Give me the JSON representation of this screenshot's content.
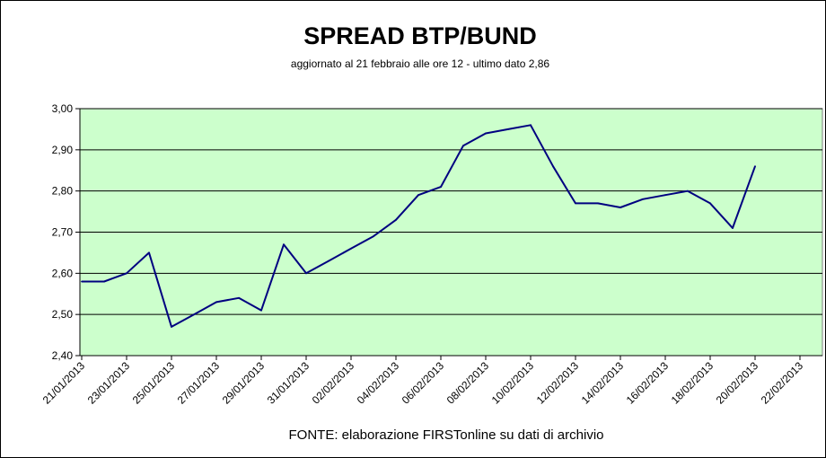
{
  "chart_data": {
    "type": "line",
    "title": "SPREAD  BTP/BUND",
    "subtitle": "aggiornato al 21 febbraio alle ore 12 - ultimo dato 2,86",
    "xlabel": "FONTE: elaborazione FIRSTonline su dati di archivio",
    "ylabel": "",
    "ylim": [
      2.4,
      3.0
    ],
    "y_ticks": [
      "2,40",
      "2,50",
      "2,60",
      "2,70",
      "2,80",
      "2,90",
      "3,00"
    ],
    "x_ticks": [
      "21/01/2013",
      "23/01/2013",
      "25/01/2013",
      "27/01/2013",
      "29/01/2013",
      "31/01/2013",
      "02/02/2013",
      "04/02/2013",
      "06/02/2013",
      "08/02/2013",
      "10/02/2013",
      "12/02/2013",
      "14/02/2013",
      "16/02/2013",
      "18/02/2013",
      "20/02/2013",
      "22/02/2013"
    ],
    "grid": true,
    "colors": {
      "plot_area": "#ccffcc",
      "line": "#000080",
      "grid": "#000000"
    },
    "series": [
      {
        "points": [
          [
            "21/01/2013",
            2.58
          ],
          [
            "22/01/2013",
            2.58
          ],
          [
            "23/01/2013",
            2.6
          ],
          [
            "24/01/2013",
            2.65
          ],
          [
            "25/01/2013",
            2.47
          ],
          [
            "26/01/2013",
            2.5
          ],
          [
            "27/01/2013",
            2.53
          ],
          [
            "28/01/2013",
            2.54
          ],
          [
            "29/01/2013",
            2.51
          ],
          [
            "30/01/2013",
            2.67
          ],
          [
            "31/01/2013",
            2.6
          ],
          [
            "01/02/2013",
            2.63
          ],
          [
            "02/02/2013",
            2.66
          ],
          [
            "03/02/2013",
            2.69
          ],
          [
            "04/02/2013",
            2.73
          ],
          [
            "05/02/2013",
            2.79
          ],
          [
            "06/02/2013",
            2.81
          ],
          [
            "07/02/2013",
            2.91
          ],
          [
            "08/02/2013",
            2.94
          ],
          [
            "09/02/2013",
            2.95
          ],
          [
            "10/02/2013",
            2.96
          ],
          [
            "11/02/2013",
            2.86
          ],
          [
            "12/02/2013",
            2.77
          ],
          [
            "13/02/2013",
            2.77
          ],
          [
            "14/02/2013",
            2.76
          ],
          [
            "15/02/2013",
            2.78
          ],
          [
            "16/02/2013",
            2.79
          ],
          [
            "17/02/2013",
            2.8
          ],
          [
            "18/02/2013",
            2.77
          ],
          [
            "19/02/2013",
            2.71
          ],
          [
            "20/02/2013",
            2.86
          ]
        ]
      }
    ],
    "source": "FONTE: elaborazione FIRSTonline su dati di archivio"
  }
}
